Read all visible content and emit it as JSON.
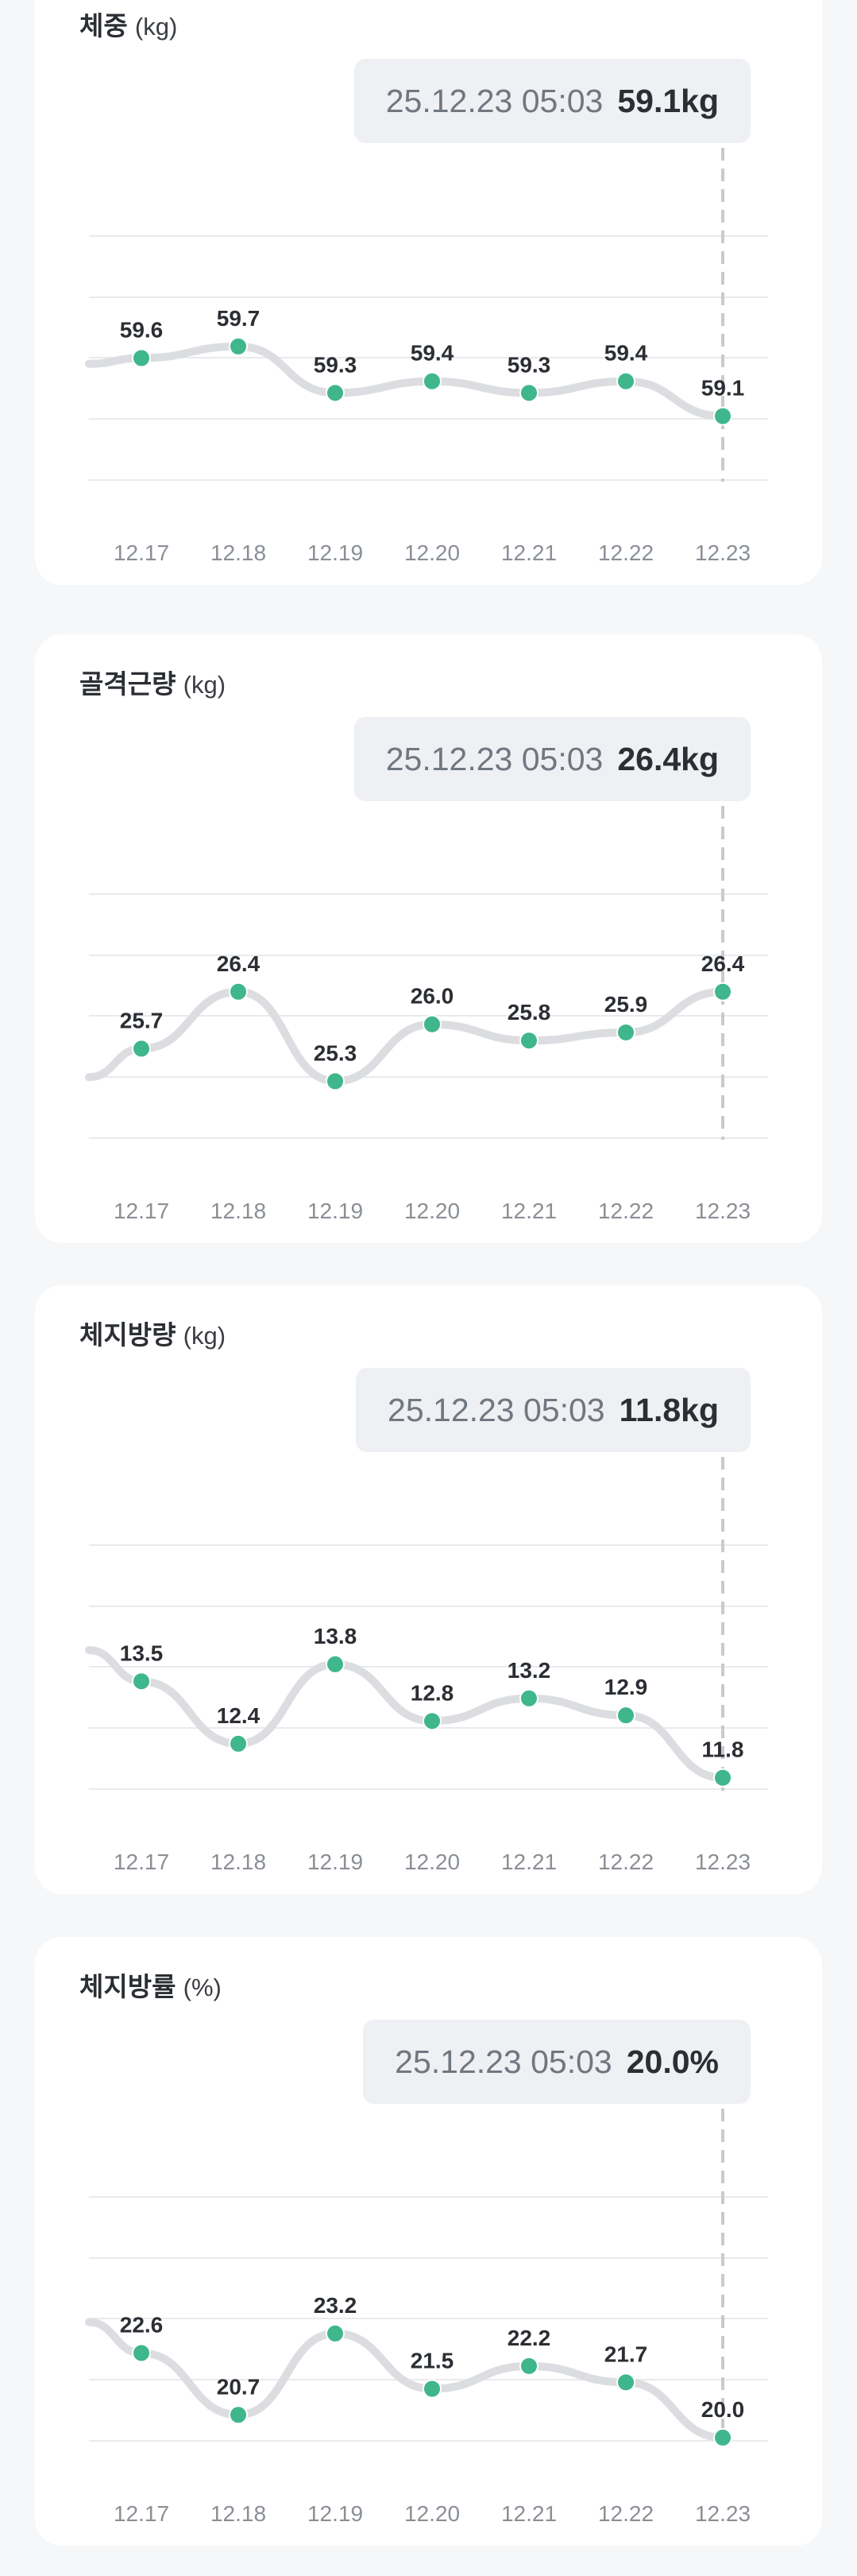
{
  "chart_data": [
    {
      "type": "line",
      "title": "체중",
      "unit": "(kg)",
      "tooltip": {
        "time": "25.12.23 05:03",
        "value": "59.1kg"
      },
      "categories": [
        "12.17",
        "12.18",
        "12.19",
        "12.20",
        "12.21",
        "12.22",
        "12.23"
      ],
      "values": [
        59.6,
        59.7,
        59.3,
        59.4,
        59.3,
        59.4,
        59.1
      ],
      "labels": [
        "59.6",
        "59.7",
        "59.3",
        "59.4",
        "59.3",
        "59.4",
        "59.1"
      ],
      "ylim": [
        58.55,
        60.65
      ],
      "selected_index": 6,
      "grid": true,
      "colors": {
        "point": "#3fb68b",
        "line": "#dcdde0"
      }
    },
    {
      "type": "line",
      "title": "골격근량",
      "unit": "(kg)",
      "tooltip": {
        "time": "25.12.23 05:03",
        "value": "26.4kg"
      },
      "categories": [
        "12.17",
        "12.18",
        "12.19",
        "12.20",
        "12.21",
        "12.22",
        "12.23"
      ],
      "values": [
        25.7,
        26.4,
        25.3,
        26.0,
        25.8,
        25.9,
        26.4
      ],
      "labels": [
        "25.7",
        "26.4",
        "25.3",
        "26.0",
        "25.8",
        "25.9",
        "26.4"
      ],
      "ylim": [
        24.6,
        27.6
      ],
      "selected_index": 6,
      "grid": true,
      "colors": {
        "point": "#3fb68b",
        "line": "#dcdde0"
      }
    },
    {
      "type": "line",
      "title": "체지방량",
      "unit": "(kg)",
      "tooltip": {
        "time": "25.12.23 05:03",
        "value": "11.8kg"
      },
      "categories": [
        "12.17",
        "12.18",
        "12.19",
        "12.20",
        "12.21",
        "12.22",
        "12.23"
      ],
      "values": [
        13.5,
        12.4,
        13.8,
        12.8,
        13.2,
        12.9,
        11.8
      ],
      "labels": [
        "13.5",
        "12.4",
        "13.8",
        "12.8",
        "13.2",
        "12.9",
        "11.8"
      ],
      "ylim": [
        11.6,
        15.9
      ],
      "selected_index": 6,
      "grid": true,
      "colors": {
        "point": "#3fb68b",
        "line": "#dcdde0"
      }
    },
    {
      "type": "line",
      "title": "체지방률",
      "unit": "(%)",
      "tooltip": {
        "time": "25.12.23 05:03",
        "value": "20.0%"
      },
      "categories": [
        "12.17",
        "12.18",
        "12.19",
        "12.20",
        "12.21",
        "12.22",
        "12.23"
      ],
      "values": [
        22.6,
        20.7,
        23.2,
        21.5,
        22.2,
        21.7,
        20.0
      ],
      "labels": [
        "22.6",
        "20.7",
        "23.2",
        "21.5",
        "22.2",
        "21.7",
        "20.0"
      ],
      "ylim": [
        19.9,
        27.4
      ],
      "selected_index": 6,
      "grid": true,
      "colors": {
        "point": "#3fb68b",
        "line": "#dcdde0"
      }
    }
  ]
}
